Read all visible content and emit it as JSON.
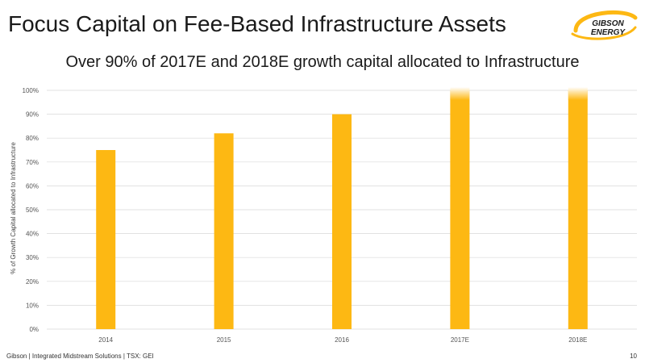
{
  "header": {
    "title": "Focus Capital on Fee-Based Infrastructure Assets",
    "logo_line1": "GIBSON",
    "logo_line2": "ENERGY"
  },
  "chart_data": {
    "type": "bar",
    "title": "Over 90% of 2017E and 2018E growth capital allocated to Infrastructure",
    "categories": [
      "2014",
      "2015",
      "2016",
      "2017E",
      "2018E"
    ],
    "values": [
      75,
      82,
      90,
      100,
      100
    ],
    "ylabel": "% of Growth Capital allocated to Infrastructure",
    "xlabel": "",
    "ylim": [
      0,
      100
    ],
    "yticks": [
      "0%",
      "10%",
      "20%",
      "30%",
      "40%",
      "50%",
      "60%",
      "70%",
      "80%",
      "90%",
      "100%"
    ],
    "grid": true,
    "bar_color": "#FDB813"
  },
  "footer": {
    "text": "Gibson  |  Integrated Midstream Solutions  |  TSX: GEI",
    "page": "10"
  },
  "colors": {
    "accent": "#FDB813",
    "text": "#1a1a1a",
    "grid": "#d9d9d9"
  }
}
